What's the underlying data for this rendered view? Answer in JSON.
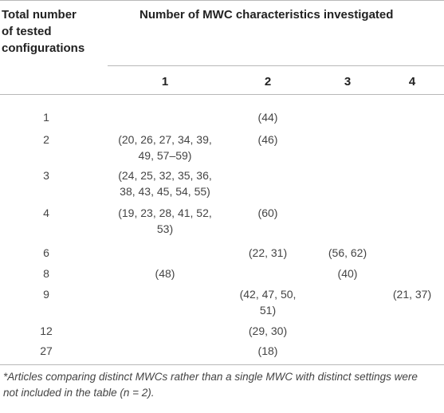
{
  "header": {
    "first_col_line1": "Total number",
    "first_col_line2": "of tested",
    "first_col_line3": "configurations",
    "group_title": "Number of MWC characteristics investigated",
    "columns": [
      "1",
      "2",
      "3",
      "4"
    ]
  },
  "rows": [
    {
      "total": "1",
      "c1": [
        "",
        ""
      ],
      "c2": [
        "(44)",
        ""
      ],
      "c3": [
        "",
        ""
      ],
      "c4": [
        "",
        ""
      ]
    },
    {
      "total": "2",
      "c1": [
        "(20, 26, 27, 34, 39,",
        "49, 57–59)"
      ],
      "c2": [
        "(46)",
        ""
      ],
      "c3": [
        "",
        ""
      ],
      "c4": [
        "",
        ""
      ]
    },
    {
      "total": "3",
      "c1": [
        "(24, 25, 32, 35, 36,",
        "38, 43, 45, 54, 55)"
      ],
      "c2": [
        "",
        ""
      ],
      "c3": [
        "",
        ""
      ],
      "c4": [
        "",
        ""
      ]
    },
    {
      "total": "4",
      "c1": [
        "(19, 23, 28, 41, 52,",
        "53)"
      ],
      "c2": [
        "(60)",
        ""
      ],
      "c3": [
        "",
        ""
      ],
      "c4": [
        "",
        ""
      ]
    },
    {
      "total": "6",
      "c1": [
        "",
        ""
      ],
      "c2": [
        "(22, 31)",
        ""
      ],
      "c3": [
        "(56, 62)",
        ""
      ],
      "c4": [
        "",
        ""
      ]
    },
    {
      "total": "8",
      "c1": [
        "(48)",
        ""
      ],
      "c2": [
        "",
        ""
      ],
      "c3": [
        "(40)",
        ""
      ],
      "c4": [
        "",
        ""
      ]
    },
    {
      "total": "9",
      "c1": [
        "",
        ""
      ],
      "c2": [
        "(42, 47, 50,",
        "51)"
      ],
      "c3": [
        "",
        ""
      ],
      "c4": [
        "(21, 37)",
        ""
      ]
    },
    {
      "total": "12",
      "c1": [
        "",
        ""
      ],
      "c2": [
        "(29, 30)",
        ""
      ],
      "c3": [
        "",
        ""
      ],
      "c4": [
        "",
        ""
      ]
    },
    {
      "total": "27",
      "c1": [
        "",
        ""
      ],
      "c2": [
        "(18)",
        ""
      ],
      "c3": [
        "",
        ""
      ],
      "c4": [
        "",
        ""
      ]
    }
  ],
  "footnote": {
    "line1": "*Articles comparing distinct MWCs rather than a single MWC with distinct settings were",
    "line2": "not included in the table (n = 2)."
  }
}
